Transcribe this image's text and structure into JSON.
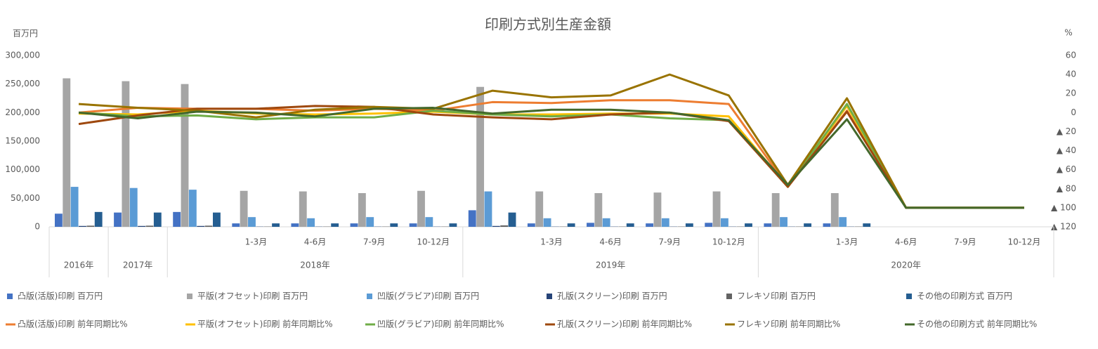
{
  "chart_data": {
    "type": "bar_line_combo",
    "title": "印刷方式別生産金額",
    "y_axis_label": "百万円",
    "y2_axis_label": "%",
    "categories": [
      null,
      null,
      null,
      "1-3月",
      "4-6月",
      "7-9月",
      "10-12月",
      null,
      "1-3月",
      "4-6月",
      "7-9月",
      "10-12月",
      null,
      "1-3月",
      "4-6月",
      "7-9月",
      "10-12月"
    ],
    "category_groups": [
      {
        "name": "2016年",
        "count": 1
      },
      {
        "name": "2017年",
        "count": 1
      },
      {
        "name": "2018年",
        "count": 5
      },
      {
        "name": "2019年",
        "count": 5
      },
      {
        "name": "2020年",
        "count": 5
      }
    ],
    "ylim": [
      0,
      300000
    ],
    "yticks": [
      0,
      {
        "value": 50000,
        "label": "50,000"
      },
      {
        "value": 100000,
        "label": "100,000"
      },
      {
        "value": 150000,
        "label": "150,000"
      },
      {
        "value": 200000,
        "label": "200,000"
      },
      {
        "value": 250000,
        "label": "250,000"
      },
      {
        "value": 300000,
        "label": "300,000"
      }
    ],
    "y2lim": [
      -120,
      60
    ],
    "y2ticks": [
      {
        "value": -120,
        "label": "▲ 120"
      },
      {
        "value": -100,
        "label": "▲ 100"
      },
      {
        "value": -80,
        "label": "▲ 80"
      },
      {
        "value": -60,
        "label": "▲ 60"
      },
      {
        "value": -40,
        "label": "▲ 40"
      },
      {
        "value": -20,
        "label": "▲ 20"
      },
      0,
      20,
      40,
      60
    ],
    "series": [
      {
        "name": "凸版(活版)印刷 百万円",
        "kind": "bar",
        "color": "#4472c4",
        "values": [
          23000,
          25000,
          26000,
          6000,
          6000,
          6000,
          6000,
          29000,
          6000,
          7000,
          6000,
          7000,
          6000,
          6000,
          null,
          null,
          null
        ]
      },
      {
        "name": "平版(オフセット)印刷 百万円",
        "kind": "bar",
        "color": "#a5a5a5",
        "values": [
          260000,
          255000,
          250000,
          63000,
          62000,
          59000,
          63000,
          245000,
          62000,
          59000,
          60000,
          62000,
          59000,
          59000,
          null,
          null,
          null
        ]
      },
      {
        "name": "凹版(グラビア)印刷 百万円",
        "kind": "bar",
        "color": "#5b9bd5",
        "values": [
          70000,
          68000,
          65000,
          17000,
          15000,
          17000,
          17000,
          62000,
          15000,
          15000,
          15000,
          15000,
          17000,
          17000,
          null,
          null,
          null
        ]
      },
      {
        "name": "孔版(スクリーン)印刷 百万円",
        "kind": "bar",
        "color": "#264478",
        "values": [
          1500,
          1500,
          1500,
          400,
          400,
          400,
          400,
          1500,
          400,
          400,
          400,
          400,
          400,
          400,
          null,
          null,
          null
        ]
      },
      {
        "name": "フレキソ印刷 百万円",
        "kind": "bar",
        "color": "#636363",
        "values": [
          2000,
          2000,
          2000,
          500,
          500,
          500,
          500,
          2500,
          500,
          500,
          500,
          500,
          500,
          500,
          null,
          null,
          null
        ]
      },
      {
        "name": "その他の印刷方式 百万円",
        "kind": "bar",
        "color": "#255e91",
        "values": [
          26000,
          25000,
          25000,
          6000,
          6000,
          6000,
          6000,
          25000,
          6000,
          6000,
          6000,
          6000,
          6000,
          6000,
          null,
          null,
          null
        ]
      },
      {
        "name": "凸版(活版)印刷 前年同期比%",
        "kind": "line",
        "axis": "y2",
        "color": "#ed7d31",
        "values": [
          0,
          5,
          4,
          4,
          2,
          4,
          2,
          11,
          10,
          13,
          13,
          9,
          -78,
          2,
          -100,
          -100,
          -100
        ]
      },
      {
        "name": "平版(オフセット)印刷 前年同期比%",
        "kind": "line",
        "axis": "y2",
        "color": "#ffc000",
        "values": [
          -1,
          -2,
          2,
          -1,
          -2,
          -1,
          1,
          -2,
          -2,
          -1,
          -1,
          -4,
          -78,
          7,
          -100,
          -100,
          -100
        ]
      },
      {
        "name": "凹版(グラビア)印刷 前年同期比%",
        "kind": "line",
        "axis": "y2",
        "color": "#70ad47",
        "values": [
          0,
          -4,
          -3,
          -7,
          -5,
          -5,
          2,
          -2,
          -4,
          -2,
          -6,
          -8,
          -78,
          9,
          -100,
          -100,
          -100
        ]
      },
      {
        "name": "孔版(スクリーン)印刷 前年同期比%",
        "kind": "line",
        "axis": "y2",
        "color": "#9e480e",
        "values": [
          -12,
          -3,
          4,
          4,
          7,
          6,
          -2,
          -5,
          -7,
          -2,
          0,
          -9,
          -78,
          1,
          -100,
          -100,
          -100
        ]
      },
      {
        "name": "フレキソ印刷 前年同期比%",
        "kind": "line",
        "axis": "y2",
        "color": "#997300",
        "values": [
          9,
          5,
          2,
          -5,
          3,
          6,
          4,
          23,
          16,
          18,
          40,
          18,
          -76,
          15,
          -100,
          -100,
          -100
        ]
      },
      {
        "name": "その他の印刷方式 前年同期比%",
        "kind": "line",
        "axis": "y2",
        "color": "#43682b",
        "values": [
          0,
          -6,
          1,
          0,
          -4,
          4,
          5,
          -1,
          3,
          3,
          0,
          -8,
          -76,
          -7,
          -100,
          -100,
          -100
        ]
      }
    ]
  }
}
